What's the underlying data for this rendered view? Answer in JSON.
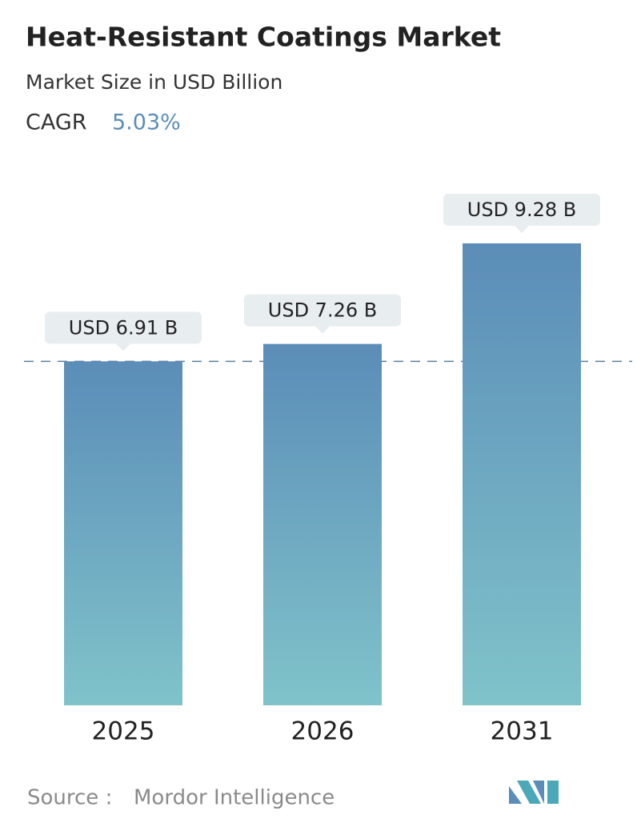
{
  "chart_data": {
    "type": "bar",
    "title": "Heat-Resistant Coatings Market",
    "subtitle": "Market Size in USD Billion",
    "cagr_label": "CAGR",
    "cagr": "5.03%",
    "categories": [
      "2025",
      "2026",
      "2031"
    ],
    "values": [
      6.91,
      7.26,
      9.28
    ],
    "value_labels": [
      "USD 6.91 B",
      "USD 7.26 B",
      "USD 9.28 B"
    ],
    "color_top": "#5b8db8",
    "color_bottom": "#80c3ca",
    "source_label": "Source :",
    "source": "Mordor Intelligence"
  }
}
